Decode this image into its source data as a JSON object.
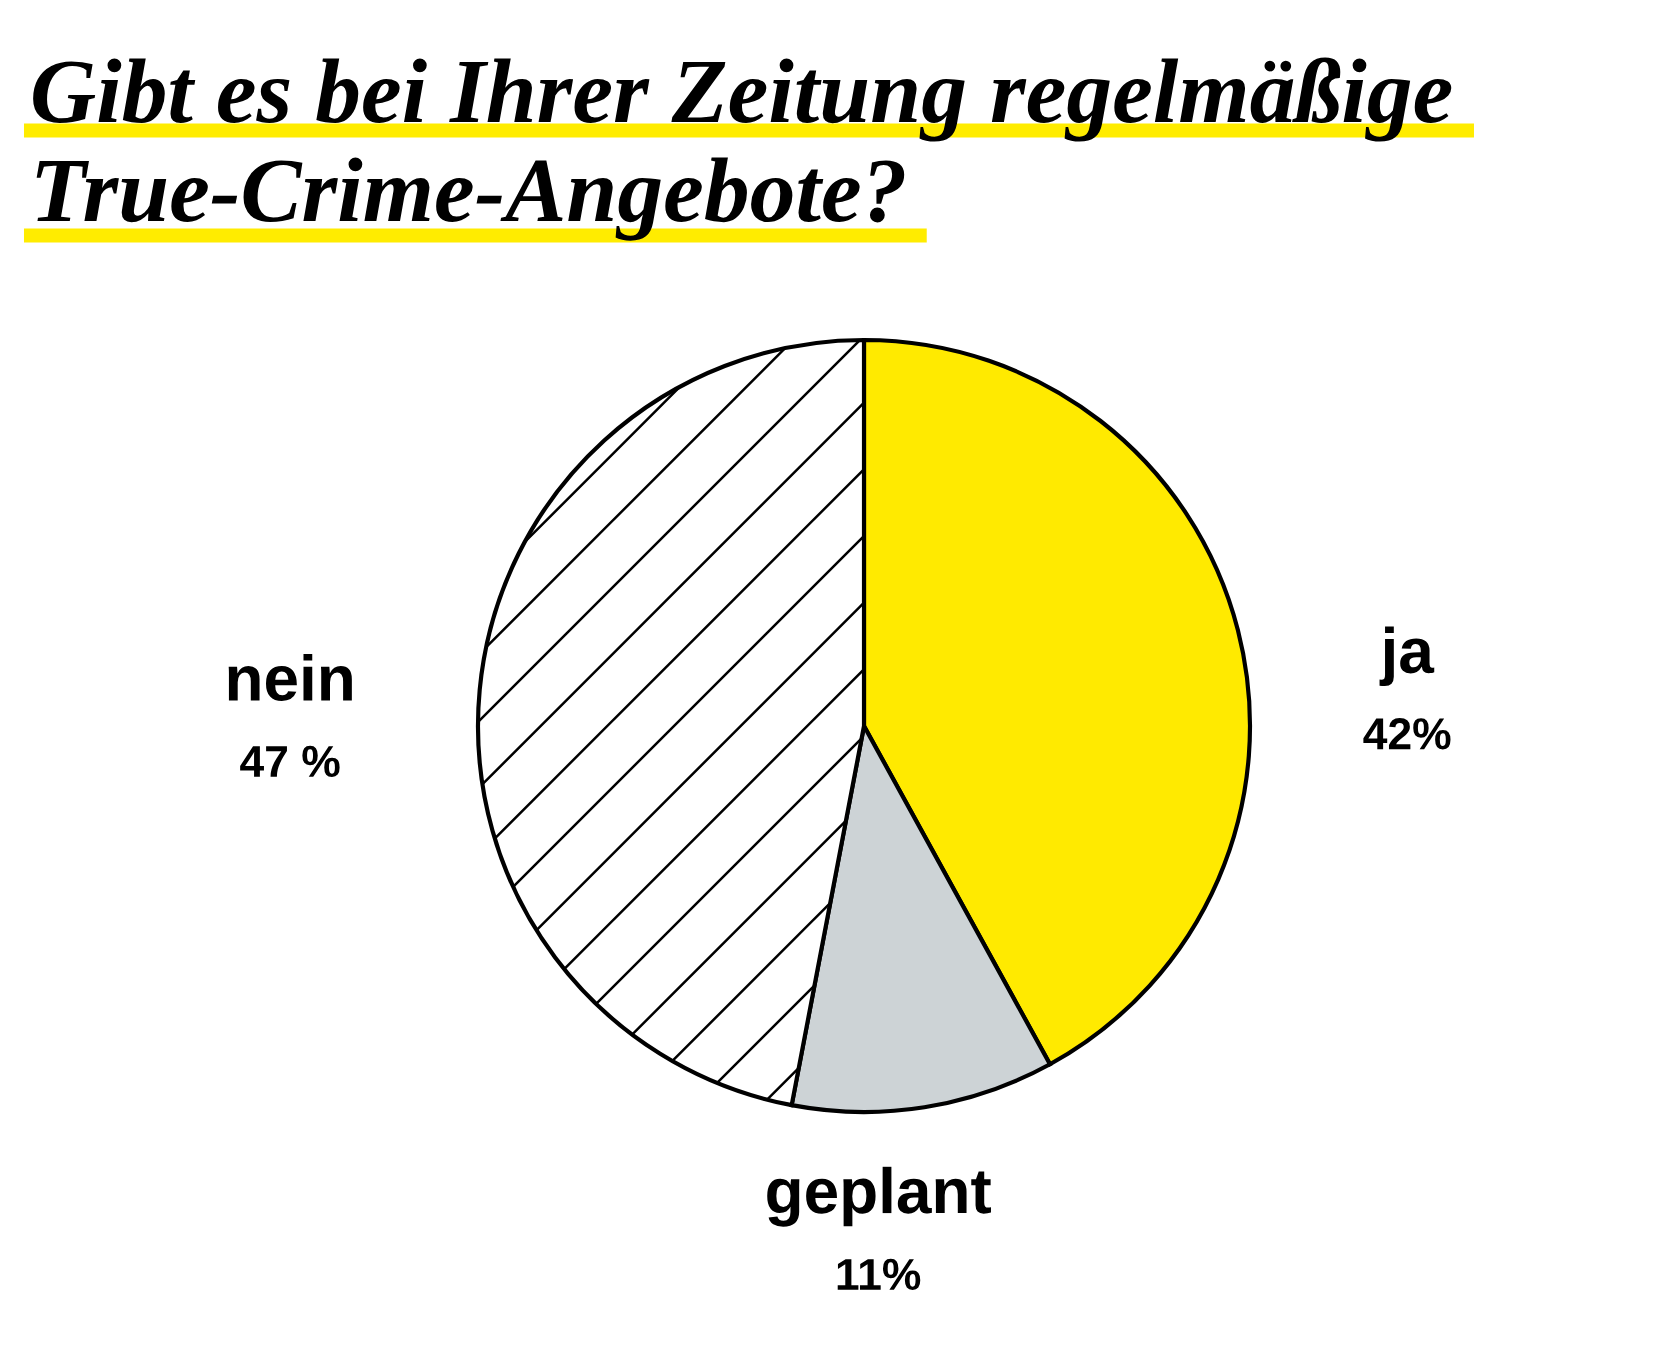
{
  "chart_data": {
    "type": "pie",
    "title": "Gibt es bei Ihrer Zeitung regelmäßige True-Crime-Angebote?",
    "categories": [
      "ja",
      "geplant",
      "nein"
    ],
    "values": [
      42,
      11,
      47
    ],
    "colors": [
      "#ffea00",
      "#cdd3d6",
      "#ffffff"
    ],
    "value_labels": [
      "42%",
      "11%",
      "47 %"
    ]
  }
}
